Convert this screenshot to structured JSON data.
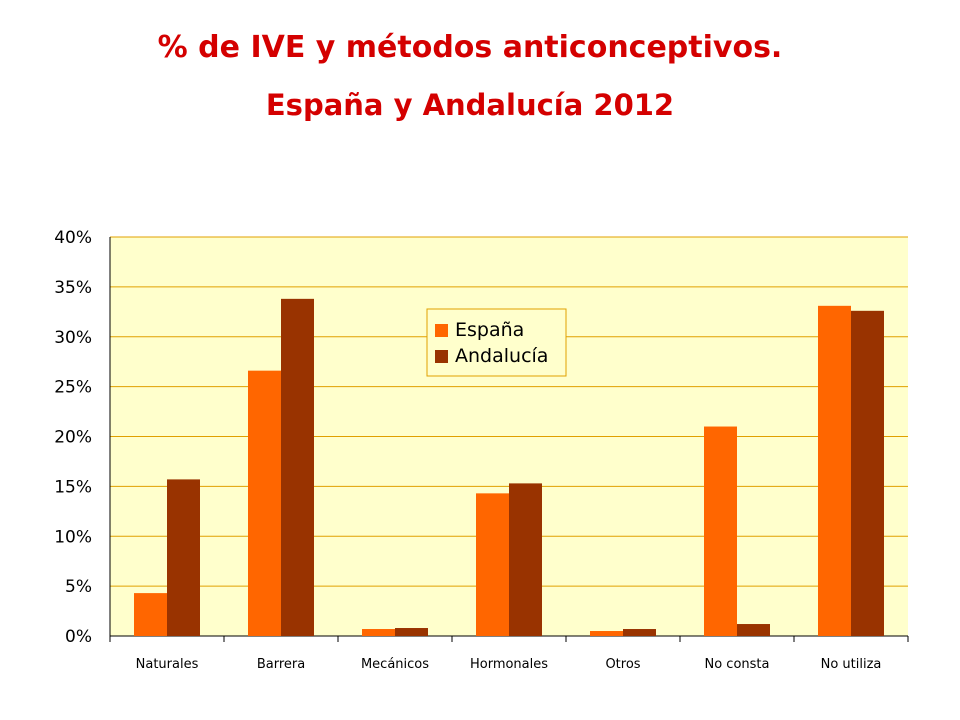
{
  "title": "% de IVE y métodos anticonceptivos.",
  "subtitle": "España y Andalucía 2012",
  "chart_data": {
    "type": "bar",
    "categories": [
      "Naturales",
      "Barrera",
      "Mecánicos",
      "Hormonales",
      "Otros",
      "No consta",
      "No utiliza"
    ],
    "series": [
      {
        "name": "España",
        "color": "#ff6600",
        "values": [
          4.3,
          26.6,
          0.7,
          14.3,
          0.5,
          21.0,
          33.1
        ]
      },
      {
        "name": "Andalucía",
        "color": "#993300",
        "values": [
          15.7,
          33.8,
          0.8,
          15.3,
          0.7,
          1.2,
          32.6
        ]
      }
    ],
    "ylim": [
      0,
      40
    ],
    "yticks": [
      0,
      5,
      10,
      15,
      20,
      25,
      30,
      35,
      40
    ],
    "ytick_labels": [
      "0%",
      "5%",
      "10%",
      "15%",
      "20%",
      "25%",
      "30%",
      "35%",
      "40%"
    ],
    "grid": true,
    "legend_position": "top-center",
    "plot_background": "#ffffcc",
    "gridline_color": "#e0a000",
    "xlabel": "",
    "ylabel": ""
  }
}
